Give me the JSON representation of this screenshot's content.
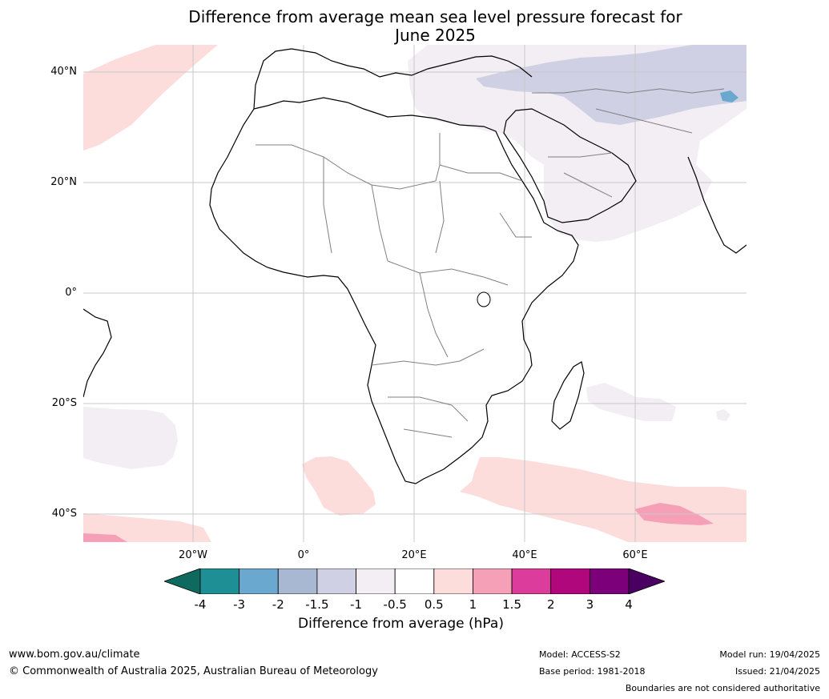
{
  "title_line1": "Difference from average mean sea level pressure forecast for",
  "title_line2": "June 2025",
  "latitude_labels": [
    "40°N",
    "20°N",
    "0°",
    "20°S",
    "40°S"
  ],
  "longitude_labels": [
    "20°W",
    "0°",
    "20°E",
    "40°E",
    "60°E"
  ],
  "colorbar": {
    "ticks": [
      "-4",
      "-3",
      "-2",
      "-1.5",
      "-1",
      "-0.5",
      "0.5",
      "1",
      "1.5",
      "2",
      "3",
      "4"
    ],
    "colors": [
      "#0e6a5e",
      "#1f8f96",
      "#6aa8cf",
      "#a8b8d2",
      "#cfd0e3",
      "#f2eef4",
      "#ffffff",
      "#fddcdc",
      "#f6a0b8",
      "#dc3c9b",
      "#b0087c",
      "#7c007a",
      "#4a0060"
    ],
    "label": "Difference from average (hPa)"
  },
  "footer": {
    "website": "www.bom.gov.au/climate",
    "copyright": "© Commonwealth of Australia 2025, Australian Bureau of Meteorology",
    "model": "Model: ACCESS-S2",
    "base_period": "Base period: 1981-2018",
    "model_run": "Model run: 19/04/2025",
    "issued": "Issued: 21/04/2025",
    "disclaimer": "Boundaries are not considered authoritative"
  }
}
